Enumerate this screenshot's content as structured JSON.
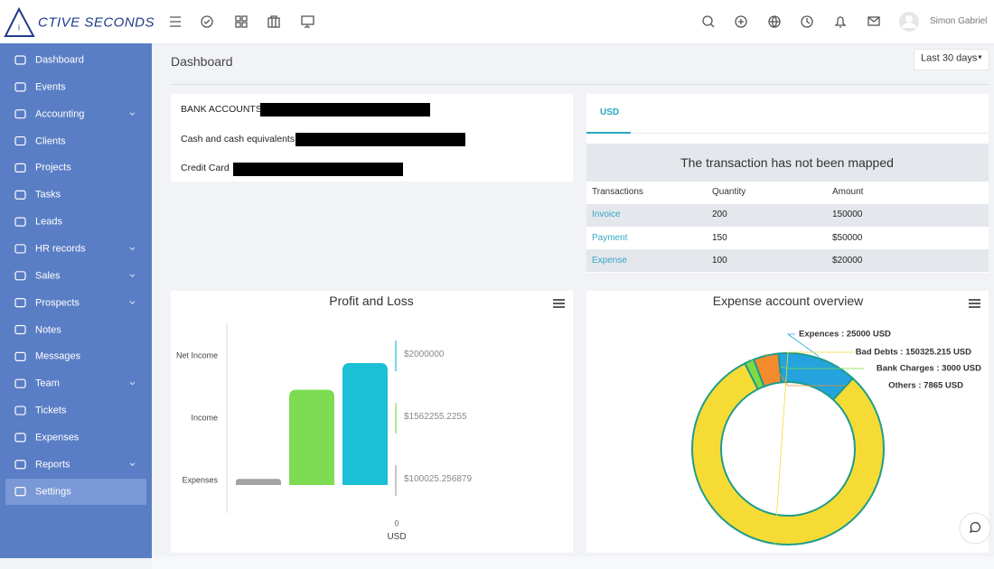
{
  "logo": "CTIVE SECONDS",
  "user": "Simon Gabriel",
  "sidebar": [
    {
      "label": "Dashboard",
      "has_children": false,
      "active": false
    },
    {
      "label": "Events",
      "has_children": false,
      "active": false
    },
    {
      "label": "Accounting",
      "has_children": true,
      "active": false
    },
    {
      "label": "Clients",
      "has_children": false,
      "active": false
    },
    {
      "label": "Projects",
      "has_children": false,
      "active": false
    },
    {
      "label": "Tasks",
      "has_children": false,
      "active": false
    },
    {
      "label": "Leads",
      "has_children": false,
      "active": false
    },
    {
      "label": "HR records",
      "has_children": true,
      "active": false
    },
    {
      "label": "Sales",
      "has_children": true,
      "active": false
    },
    {
      "label": "Prospects",
      "has_children": true,
      "active": false
    },
    {
      "label": "Notes",
      "has_children": false,
      "active": false
    },
    {
      "label": "Messages",
      "has_children": false,
      "active": false
    },
    {
      "label": "Team",
      "has_children": true,
      "active": false
    },
    {
      "label": "Tickets",
      "has_children": false,
      "active": false
    },
    {
      "label": "Expenses",
      "has_children": false,
      "active": false
    },
    {
      "label": "Reports",
      "has_children": true,
      "active": false
    },
    {
      "label": "Settings",
      "has_children": false,
      "active": true
    }
  ],
  "page_title": "Dashboard",
  "date_range": "Last 30 days",
  "bank_card": {
    "rows": [
      "BANK ACCOUNTS",
      "Cash and cash equivalents",
      "Credit Card"
    ]
  },
  "usd_card": {
    "tab": "USD",
    "message": "The transaction has not been mapped",
    "columns": [
      "Transactions",
      "Quantity",
      "Amount"
    ],
    "rows": [
      [
        "Invoice",
        200,
        150000
      ],
      [
        "Payment",
        150,
        "$50000"
      ],
      [
        "Expense",
        100,
        "$20000"
      ]
    ]
  },
  "profit_loss": {
    "type": "bar",
    "title": "Profit and Loss",
    "categories": [
      "Net Income",
      "Income",
      "Expenses"
    ],
    "values": [
      2000000,
      1562255.2255,
      100025.256879
    ],
    "value_labels": [
      "$2000000",
      "$1562255.2255",
      "$100025.256879"
    ],
    "colors": [
      "#1bbfd6",
      "#7ddc52",
      "#a3a3a5"
    ],
    "xticks": [
      0
    ],
    "x_axis_label": "USD"
  },
  "expense_overview": {
    "type": "donut",
    "title": "Expense account overview",
    "data_labels": [
      "Expences : 25000 USD",
      "Bad Debts : 150325.215 USD",
      "Bank Charges : 3000 USD",
      "Others : 7865 USD"
    ],
    "values": [
      25000,
      150325.215,
      3000,
      7865
    ],
    "colors": [
      "#24a3dc",
      "#f6db34",
      "#7edb43",
      "#f48b2c"
    ]
  }
}
